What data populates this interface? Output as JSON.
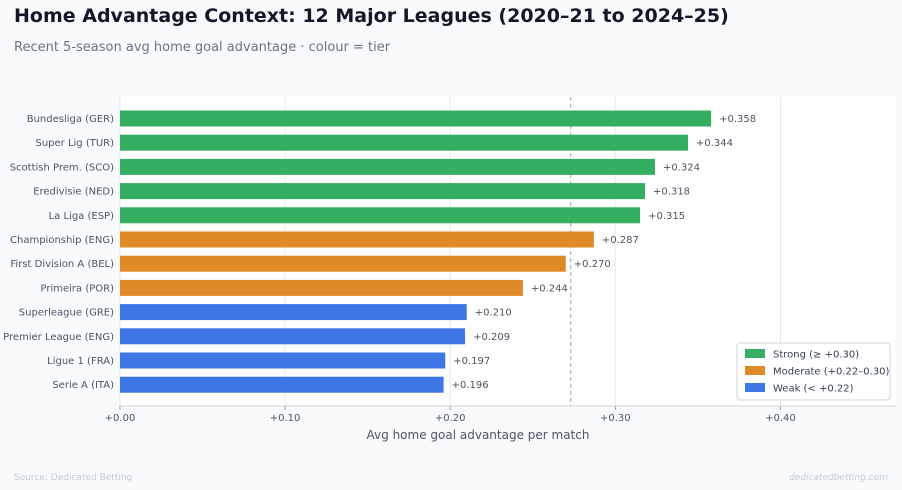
{
  "header": {
    "title": "Home Advantage Context: 12 Major Leagues (2020–21 to 2024–25)",
    "subtitle": "Recent 5-season avg home goal advantage · colour = tier"
  },
  "footer": {
    "source": "Source: Dedicated Betting",
    "brand": "dedicatedbetting.com"
  },
  "colors": {
    "strong": "#34ae60",
    "moderate": "#df8a27",
    "weak": "#3f76e5",
    "grid": "#e5e7eb",
    "reference_line": "#9ca3af"
  },
  "chart_data": {
    "type": "bar",
    "orientation": "horizontal",
    "categories": [
      "Bundesliga (GER)",
      "Super Lig (TUR)",
      "Scottish Prem. (SCO)",
      "Eredivisie (NED)",
      "La Liga (ESP)",
      "Championship (ENG)",
      "First Division A (BEL)",
      "Primeira (POR)",
      "Superleague (GRE)",
      "Premier League (ENG)",
      "Ligue 1 (FRA)",
      "Serie A (ITA)"
    ],
    "values": [
      0.358,
      0.344,
      0.324,
      0.318,
      0.315,
      0.287,
      0.27,
      0.244,
      0.21,
      0.209,
      0.197,
      0.196
    ],
    "value_labels": [
      "+0.358",
      "+0.344",
      "+0.324",
      "+0.318",
      "+0.315",
      "+0.287",
      "+0.270",
      "+0.244",
      "+0.210",
      "+0.209",
      "+0.197",
      "+0.196"
    ],
    "tiers": [
      "strong",
      "strong",
      "strong",
      "strong",
      "strong",
      "moderate",
      "moderate",
      "moderate",
      "weak",
      "weak",
      "weak",
      "weak"
    ],
    "xlabel": "Avg home goal advantage per match",
    "ylabel": "",
    "xlim": [
      0,
      0.47
    ],
    "xticks": [
      0,
      0.1,
      0.2,
      0.3,
      0.4
    ],
    "xtick_labels": [
      "+0.00",
      "+0.10",
      "+0.20",
      "+0.30",
      "+0.40"
    ],
    "reference_line": {
      "value": 0.273,
      "style": "dashed"
    },
    "grid": true,
    "legend": {
      "placement": "bottom-right",
      "entries": [
        {
          "tier": "strong",
          "label": "Strong (≥ +0.30)"
        },
        {
          "tier": "moderate",
          "label": "Moderate (+0.22–0.30)"
        },
        {
          "tier": "weak",
          "label": "Weak (< +0.22)"
        }
      ]
    }
  }
}
